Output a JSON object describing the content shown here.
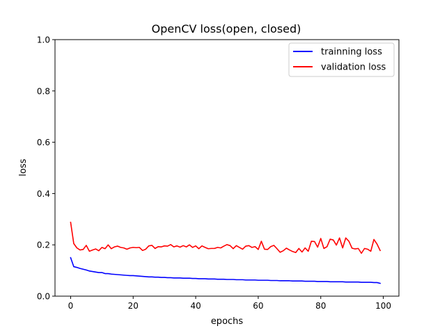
{
  "chart_data": {
    "type": "line",
    "title": "OpenCV loss(open, closed)",
    "xlabel": "epochs",
    "ylabel": "loss",
    "xlim": [
      -5,
      105
    ],
    "ylim": [
      0.0,
      1.0
    ],
    "x_ticks": [
      0,
      20,
      40,
      60,
      80,
      100
    ],
    "x_tick_labels": [
      "0",
      "20",
      "40",
      "60",
      "80",
      "100"
    ],
    "y_ticks": [
      0.0,
      0.2,
      0.4,
      0.6,
      0.8,
      1.0
    ],
    "y_tick_labels": [
      "0.0",
      "0.2",
      "0.4",
      "0.6",
      "0.8",
      "1.0"
    ],
    "grid": false,
    "legend_position": "upper right",
    "series": [
      {
        "name": "trainning loss",
        "color": "#0000ff",
        "values": [
          0.15,
          0.115,
          0.112,
          0.108,
          0.105,
          0.102,
          0.098,
          0.096,
          0.094,
          0.092,
          0.092,
          0.088,
          0.088,
          0.086,
          0.085,
          0.084,
          0.083,
          0.082,
          0.081,
          0.08,
          0.08,
          0.079,
          0.078,
          0.077,
          0.076,
          0.075,
          0.075,
          0.074,
          0.074,
          0.073,
          0.073,
          0.072,
          0.072,
          0.071,
          0.071,
          0.071,
          0.07,
          0.07,
          0.07,
          0.069,
          0.069,
          0.068,
          0.068,
          0.068,
          0.067,
          0.067,
          0.067,
          0.066,
          0.066,
          0.066,
          0.065,
          0.065,
          0.065,
          0.064,
          0.064,
          0.064,
          0.063,
          0.063,
          0.063,
          0.063,
          0.062,
          0.062,
          0.062,
          0.062,
          0.061,
          0.061,
          0.061,
          0.06,
          0.06,
          0.06,
          0.06,
          0.059,
          0.059,
          0.059,
          0.059,
          0.058,
          0.058,
          0.058,
          0.058,
          0.057,
          0.057,
          0.057,
          0.057,
          0.056,
          0.056,
          0.056,
          0.056,
          0.056,
          0.055,
          0.055,
          0.055,
          0.055,
          0.055,
          0.054,
          0.054,
          0.054,
          0.054,
          0.053,
          0.053,
          0.05
        ]
      },
      {
        "name": "validation loss",
        "color": "#ff0000",
        "values": [
          0.288,
          0.205,
          0.188,
          0.18,
          0.182,
          0.198,
          0.175,
          0.18,
          0.184,
          0.177,
          0.19,
          0.185,
          0.2,
          0.185,
          0.192,
          0.195,
          0.19,
          0.188,
          0.183,
          0.188,
          0.19,
          0.189,
          0.19,
          0.178,
          0.183,
          0.196,
          0.198,
          0.186,
          0.193,
          0.192,
          0.196,
          0.195,
          0.201,
          0.192,
          0.196,
          0.191,
          0.197,
          0.192,
          0.2,
          0.19,
          0.196,
          0.185,
          0.196,
          0.19,
          0.185,
          0.186,
          0.186,
          0.19,
          0.188,
          0.195,
          0.201,
          0.197,
          0.185,
          0.197,
          0.19,
          0.183,
          0.195,
          0.197,
          0.19,
          0.193,
          0.182,
          0.214,
          0.183,
          0.182,
          0.193,
          0.198,
          0.185,
          0.171,
          0.177,
          0.187,
          0.18,
          0.174,
          0.17,
          0.186,
          0.172,
          0.188,
          0.175,
          0.214,
          0.213,
          0.191,
          0.225,
          0.186,
          0.193,
          0.222,
          0.219,
          0.199,
          0.227,
          0.188,
          0.227,
          0.214,
          0.187,
          0.184,
          0.186,
          0.167,
          0.186,
          0.183,
          0.175,
          0.221,
          0.203,
          0.178
        ]
      }
    ]
  }
}
